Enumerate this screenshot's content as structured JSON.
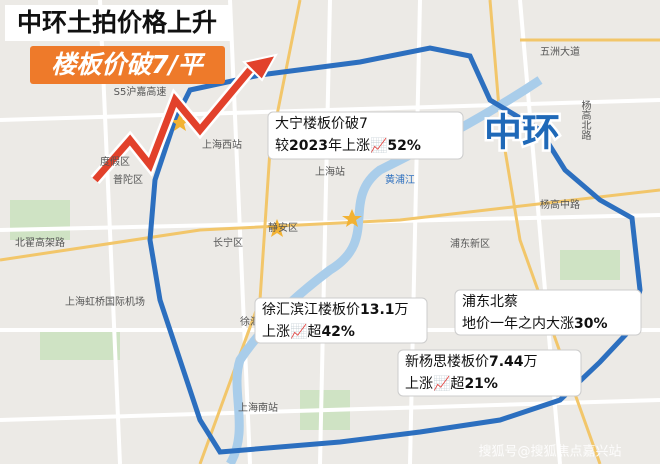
{
  "headline": {
    "line1": "中环土拍价格上升",
    "line2": "楼板价破7/平"
  },
  "ring_label": "中环",
  "map_labels": [
    "五洲大道",
    "杨高北路",
    "杨高中路",
    "黄浦江",
    "上海西站",
    "上海站",
    "普陀区",
    "静安区",
    "长宁区",
    "浦东新区",
    "北翟高架路",
    "上海虹桥国际机场",
    "徐汇",
    "上海南站",
    "S5沪嘉高速",
    "度假区"
  ],
  "callouts": [
    {
      "lines": [
        [
          {
            "text": "大宁楼板价破7",
            "bold": false
          }
        ],
        [
          {
            "text": "较",
            "bold": false
          },
          {
            "text": "2023",
            "bold": true
          },
          {
            "text": "年上涨📈",
            "bold": false
          },
          {
            "text": "52%",
            "bold": true
          }
        ]
      ]
    },
    {
      "lines": [
        [
          {
            "text": "徐汇滨江楼板价",
            "bold": false
          },
          {
            "text": "13.1",
            "bold": true
          },
          {
            "text": "万",
            "bold": false
          }
        ],
        [
          {
            "text": "上涨📈超",
            "bold": false
          },
          {
            "text": "42%",
            "bold": true
          }
        ]
      ]
    },
    {
      "lines": [
        [
          {
            "text": "新杨思楼板价",
            "bold": false
          },
          {
            "text": "7.44",
            "bold": true
          },
          {
            "text": "万",
            "bold": false
          }
        ],
        [
          {
            "text": "上涨📈超",
            "bold": false
          },
          {
            "text": "21%",
            "bold": true
          }
        ]
      ]
    },
    {
      "lines": [
        [
          {
            "text": "浦东北蔡",
            "bold": false
          }
        ],
        [
          {
            "text": "地价一年之内大涨",
            "bold": false
          },
          {
            "text": "30%",
            "bold": true
          }
        ]
      ]
    }
  ],
  "watermark": "搜狐号@搜狐焦点嘉兴站"
}
